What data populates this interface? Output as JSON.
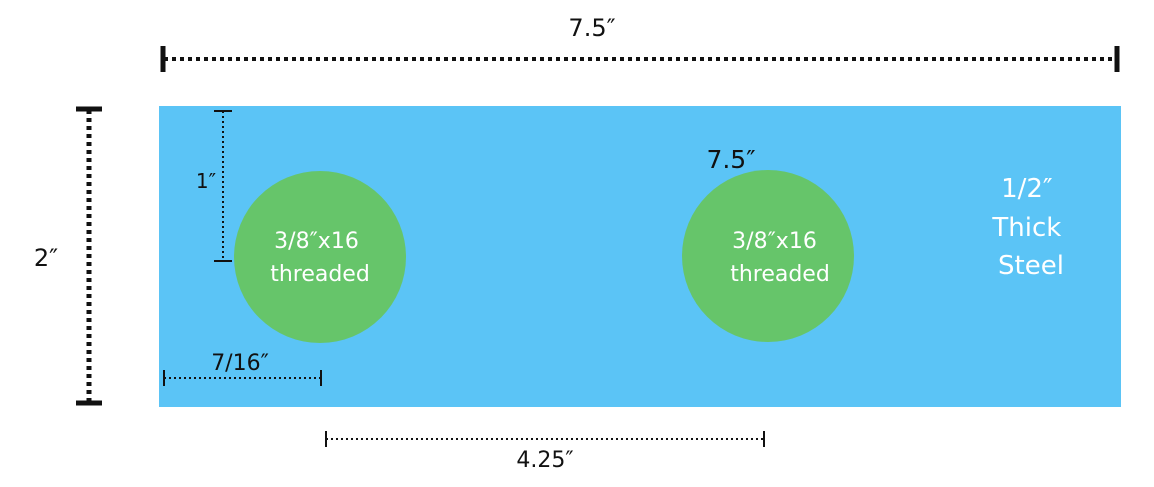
{
  "plate": {
    "color": "#5BC4F6",
    "thickness_label": [
      "1/2″",
      "Thick",
      "Steel"
    ]
  },
  "holes": [
    {
      "color": "#66C56A",
      "lines": [
        "3/8″x16",
        "threaded"
      ]
    },
    {
      "color": "#66C56A",
      "lines": [
        "3/8″x16",
        "threaded"
      ]
    }
  ],
  "dimensions": {
    "overall_width": "7.5″",
    "overall_height": "2″",
    "hole_vertical_offset": "1″",
    "hole_horizontal_offset": "7/16″",
    "hole_spacing": "4.25″",
    "second_hole_label": "7.5″"
  },
  "colors": {
    "dimension_line": "#111111",
    "label_text_on_plate": "#FFFFFF"
  }
}
